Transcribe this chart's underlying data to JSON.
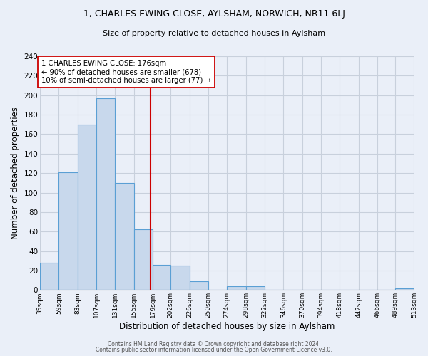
{
  "title_line1": "1, CHARLES EWING CLOSE, AYLSHAM, NORWICH, NR11 6LJ",
  "title_line2": "Size of property relative to detached houses in Aylsham",
  "xlabel": "Distribution of detached houses by size in Aylsham",
  "ylabel": "Number of detached properties",
  "bar_edges": [
    35,
    59,
    83,
    107,
    131,
    155,
    179,
    202,
    226,
    250,
    274,
    298,
    322,
    346,
    370,
    394,
    418,
    442,
    466,
    489,
    513
  ],
  "bar_heights": [
    28,
    121,
    170,
    197,
    110,
    62,
    26,
    25,
    9,
    0,
    4,
    4,
    0,
    0,
    0,
    0,
    0,
    0,
    0,
    2
  ],
  "tick_labels": [
    "35sqm",
    "59sqm",
    "83sqm",
    "107sqm",
    "131sqm",
    "155sqm",
    "179sqm",
    "202sqm",
    "226sqm",
    "250sqm",
    "274sqm",
    "298sqm",
    "322sqm",
    "346sqm",
    "370sqm",
    "394sqm",
    "418sqm",
    "442sqm",
    "466sqm",
    "489sqm",
    "513sqm"
  ],
  "bar_color": "#c8d8ec",
  "bar_edge_color": "#5a9fd4",
  "vline_x": 176,
  "vline_color": "#cc0000",
  "annotation_text": "1 CHARLES EWING CLOSE: 176sqm\n← 90% of detached houses are smaller (678)\n10% of semi-detached houses are larger (77) →",
  "annotation_box_color": "#ffffff",
  "annotation_box_edge": "#cc0000",
  "ylim": [
    0,
    240
  ],
  "yticks": [
    0,
    20,
    40,
    60,
    80,
    100,
    120,
    140,
    160,
    180,
    200,
    220,
    240
  ],
  "grid_color": "#c8d0dc",
  "background_color": "#eaeff8",
  "footer_line1": "Contains HM Land Registry data © Crown copyright and database right 2024.",
  "footer_line2": "Contains public sector information licensed under the Open Government Licence v3.0."
}
